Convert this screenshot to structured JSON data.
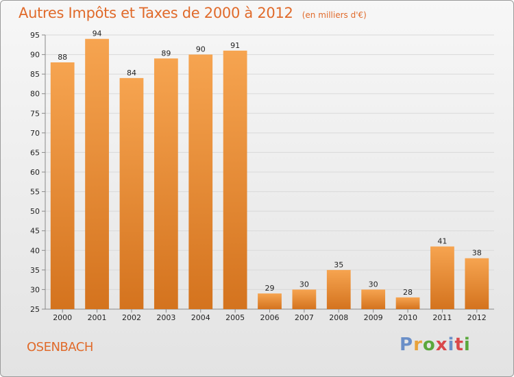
{
  "header": {
    "title": "Autres Impôts et Taxes de 2000 à 2012",
    "subtitle": "(en milliers d'€)"
  },
  "footer": {
    "commune": "OSENBACH",
    "logo_text": "Proxiti"
  },
  "colors": {
    "bar_light": "#f6a450",
    "bar_dark": "#d4731e",
    "accent": "#e06a2a",
    "grid": "#d9d9d9",
    "logo_letters": [
      "#6a8fc8",
      "#e8a23a",
      "#5aa83c",
      "#d9484a",
      "#6a8fc8",
      "#d9484a",
      "#5aa83c"
    ]
  },
  "chart_data": {
    "type": "bar",
    "title": "Autres Impôts et Taxes de 2000 à 2012",
    "subtitle": "(en milliers d'€)",
    "categories": [
      "2000",
      "2001",
      "2002",
      "2003",
      "2004",
      "2005",
      "2006",
      "2007",
      "2008",
      "2009",
      "2010",
      "2011",
      "2012"
    ],
    "values": [
      88,
      94,
      84,
      89,
      90,
      91,
      29,
      30,
      35,
      30,
      28,
      41,
      38
    ],
    "ylim": [
      25,
      95
    ],
    "yticks": [
      25,
      30,
      35,
      40,
      45,
      50,
      55,
      60,
      65,
      70,
      75,
      80,
      85,
      90,
      95
    ],
    "grid": true
  }
}
